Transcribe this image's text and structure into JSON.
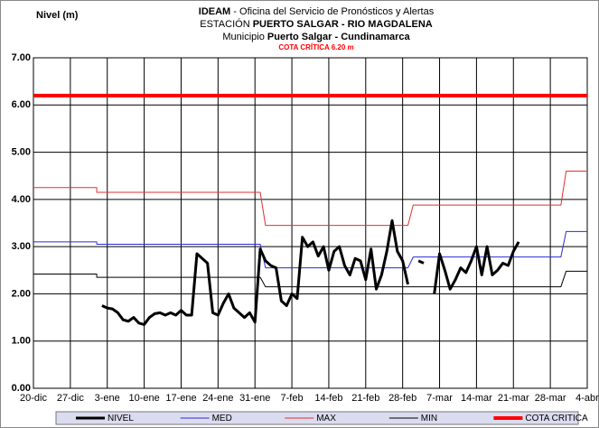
{
  "chart_data": {
    "type": "line",
    "y_label": "Nivel (m)",
    "title_lines": [
      [
        "IDEAM",
        " - Oficina del Servicio de Pronósticos y Alertas"
      ],
      [
        "ESTACIÓN ",
        "PUERTO SALGAR - RIO MAGDALENA"
      ],
      [
        "Municipio ",
        "Puerto Salgar - Cundinamarca"
      ]
    ],
    "subtitle": "COTA CRÍTICA 6.20 m",
    "xlim": [
      0,
      105
    ],
    "xticks": [
      {
        "value": 0,
        "label": "20-dic"
      },
      {
        "value": 7,
        "label": "27-dic"
      },
      {
        "value": 14,
        "label": "3-ene"
      },
      {
        "value": 21,
        "label": "10-ene"
      },
      {
        "value": 28,
        "label": "17-ene"
      },
      {
        "value": 35,
        "label": "24-ene"
      },
      {
        "value": 42,
        "label": "31-ene"
      },
      {
        "value": 49,
        "label": "7-feb"
      },
      {
        "value": 56,
        "label": "14-feb"
      },
      {
        "value": 63,
        "label": "21-feb"
      },
      {
        "value": 70,
        "label": "28-feb"
      },
      {
        "value": 77,
        "label": "7-mar"
      },
      {
        "value": 84,
        "label": "14-mar"
      },
      {
        "value": 91,
        "label": "21-mar"
      },
      {
        "value": 98,
        "label": "28-mar"
      },
      {
        "value": 105,
        "label": "4-abr"
      }
    ],
    "ylim": [
      0,
      7
    ],
    "yticks": [
      {
        "value": 0,
        "label": "0.00"
      },
      {
        "value": 1,
        "label": "1.00"
      },
      {
        "value": 2,
        "label": "2.00"
      },
      {
        "value": 3,
        "label": "3.00"
      },
      {
        "value": 4,
        "label": "4.00"
      },
      {
        "value": 5,
        "label": "5.00"
      },
      {
        "value": 6,
        "label": "6.00"
      },
      {
        "value": 7,
        "label": "7.00"
      }
    ],
    "grid": true,
    "series": [
      {
        "name": "NIVEL",
        "color": "#000000",
        "width": 3,
        "x": [
          13,
          14,
          15,
          16,
          17,
          18,
          19,
          20,
          21,
          22,
          23,
          24,
          25,
          26,
          27,
          28,
          29,
          30,
          31,
          32,
          33,
          34,
          35,
          36,
          37,
          38,
          39,
          40,
          41,
          42,
          43,
          44,
          45,
          46,
          47,
          48,
          49,
          50,
          51,
          52,
          53,
          54,
          55,
          56,
          57,
          58,
          59,
          60,
          61,
          62,
          63,
          64,
          65,
          66,
          67,
          68,
          69,
          70,
          71,
          72,
          73,
          74,
          75,
          76,
          77,
          78,
          79,
          80,
          81,
          82,
          83,
          84,
          85,
          86,
          87,
          88,
          89,
          90,
          91,
          92
        ],
        "values": [
          1.75,
          1.7,
          1.68,
          1.6,
          1.45,
          1.42,
          1.5,
          1.38,
          1.35,
          1.5,
          1.58,
          1.6,
          1.55,
          1.6,
          1.55,
          1.65,
          1.55,
          1.55,
          2.85,
          2.75,
          2.65,
          1.6,
          1.55,
          1.8,
          2.0,
          1.7,
          1.6,
          1.5,
          1.6,
          1.4,
          2.95,
          2.7,
          2.6,
          2.55,
          1.85,
          1.75,
          2.0,
          1.9,
          3.2,
          3.0,
          3.1,
          2.8,
          3.0,
          2.5,
          2.9,
          3.0,
          2.6,
          2.4,
          2.75,
          2.7,
          2.3,
          2.95,
          2.1,
          2.4,
          2.9,
          3.55,
          2.9,
          2.7,
          2.2,
          null,
          2.7,
          2.65,
          null,
          2.0,
          2.85,
          2.5,
          2.1,
          2.3,
          2.55,
          2.45,
          2.7,
          3.0,
          2.4,
          3.0,
          2.4,
          2.5,
          2.65,
          2.6,
          2.9,
          3.1
        ]
      },
      {
        "name": "MED",
        "color": "#2b2bd6",
        "width": 1,
        "x": [
          0,
          12,
          12,
          43,
          44,
          71,
          72,
          100,
          101,
          105
        ],
        "values": [
          3.1,
          3.1,
          3.05,
          3.05,
          2.55,
          2.55,
          2.78,
          2.78,
          3.32,
          3.32
        ]
      },
      {
        "name": "MAX",
        "color": "#e03030",
        "width": 1,
        "x": [
          0,
          12,
          12,
          43,
          44,
          71,
          72,
          100,
          101,
          105
        ],
        "values": [
          4.25,
          4.25,
          4.15,
          4.15,
          3.45,
          3.45,
          3.88,
          3.88,
          4.6,
          4.6
        ]
      },
      {
        "name": "MIN",
        "color": "#000000",
        "width": 1,
        "x": [
          0,
          12,
          12,
          43,
          44,
          71,
          72,
          100,
          101,
          105
        ],
        "values": [
          2.42,
          2.42,
          2.35,
          2.35,
          2.15,
          2.15,
          2.15,
          2.15,
          2.48,
          2.48
        ]
      },
      {
        "name": "COTA CRITICA",
        "color": "#ff0000",
        "width": 4,
        "x": [
          0,
          105
        ],
        "values": [
          6.2,
          6.2
        ]
      }
    ]
  }
}
